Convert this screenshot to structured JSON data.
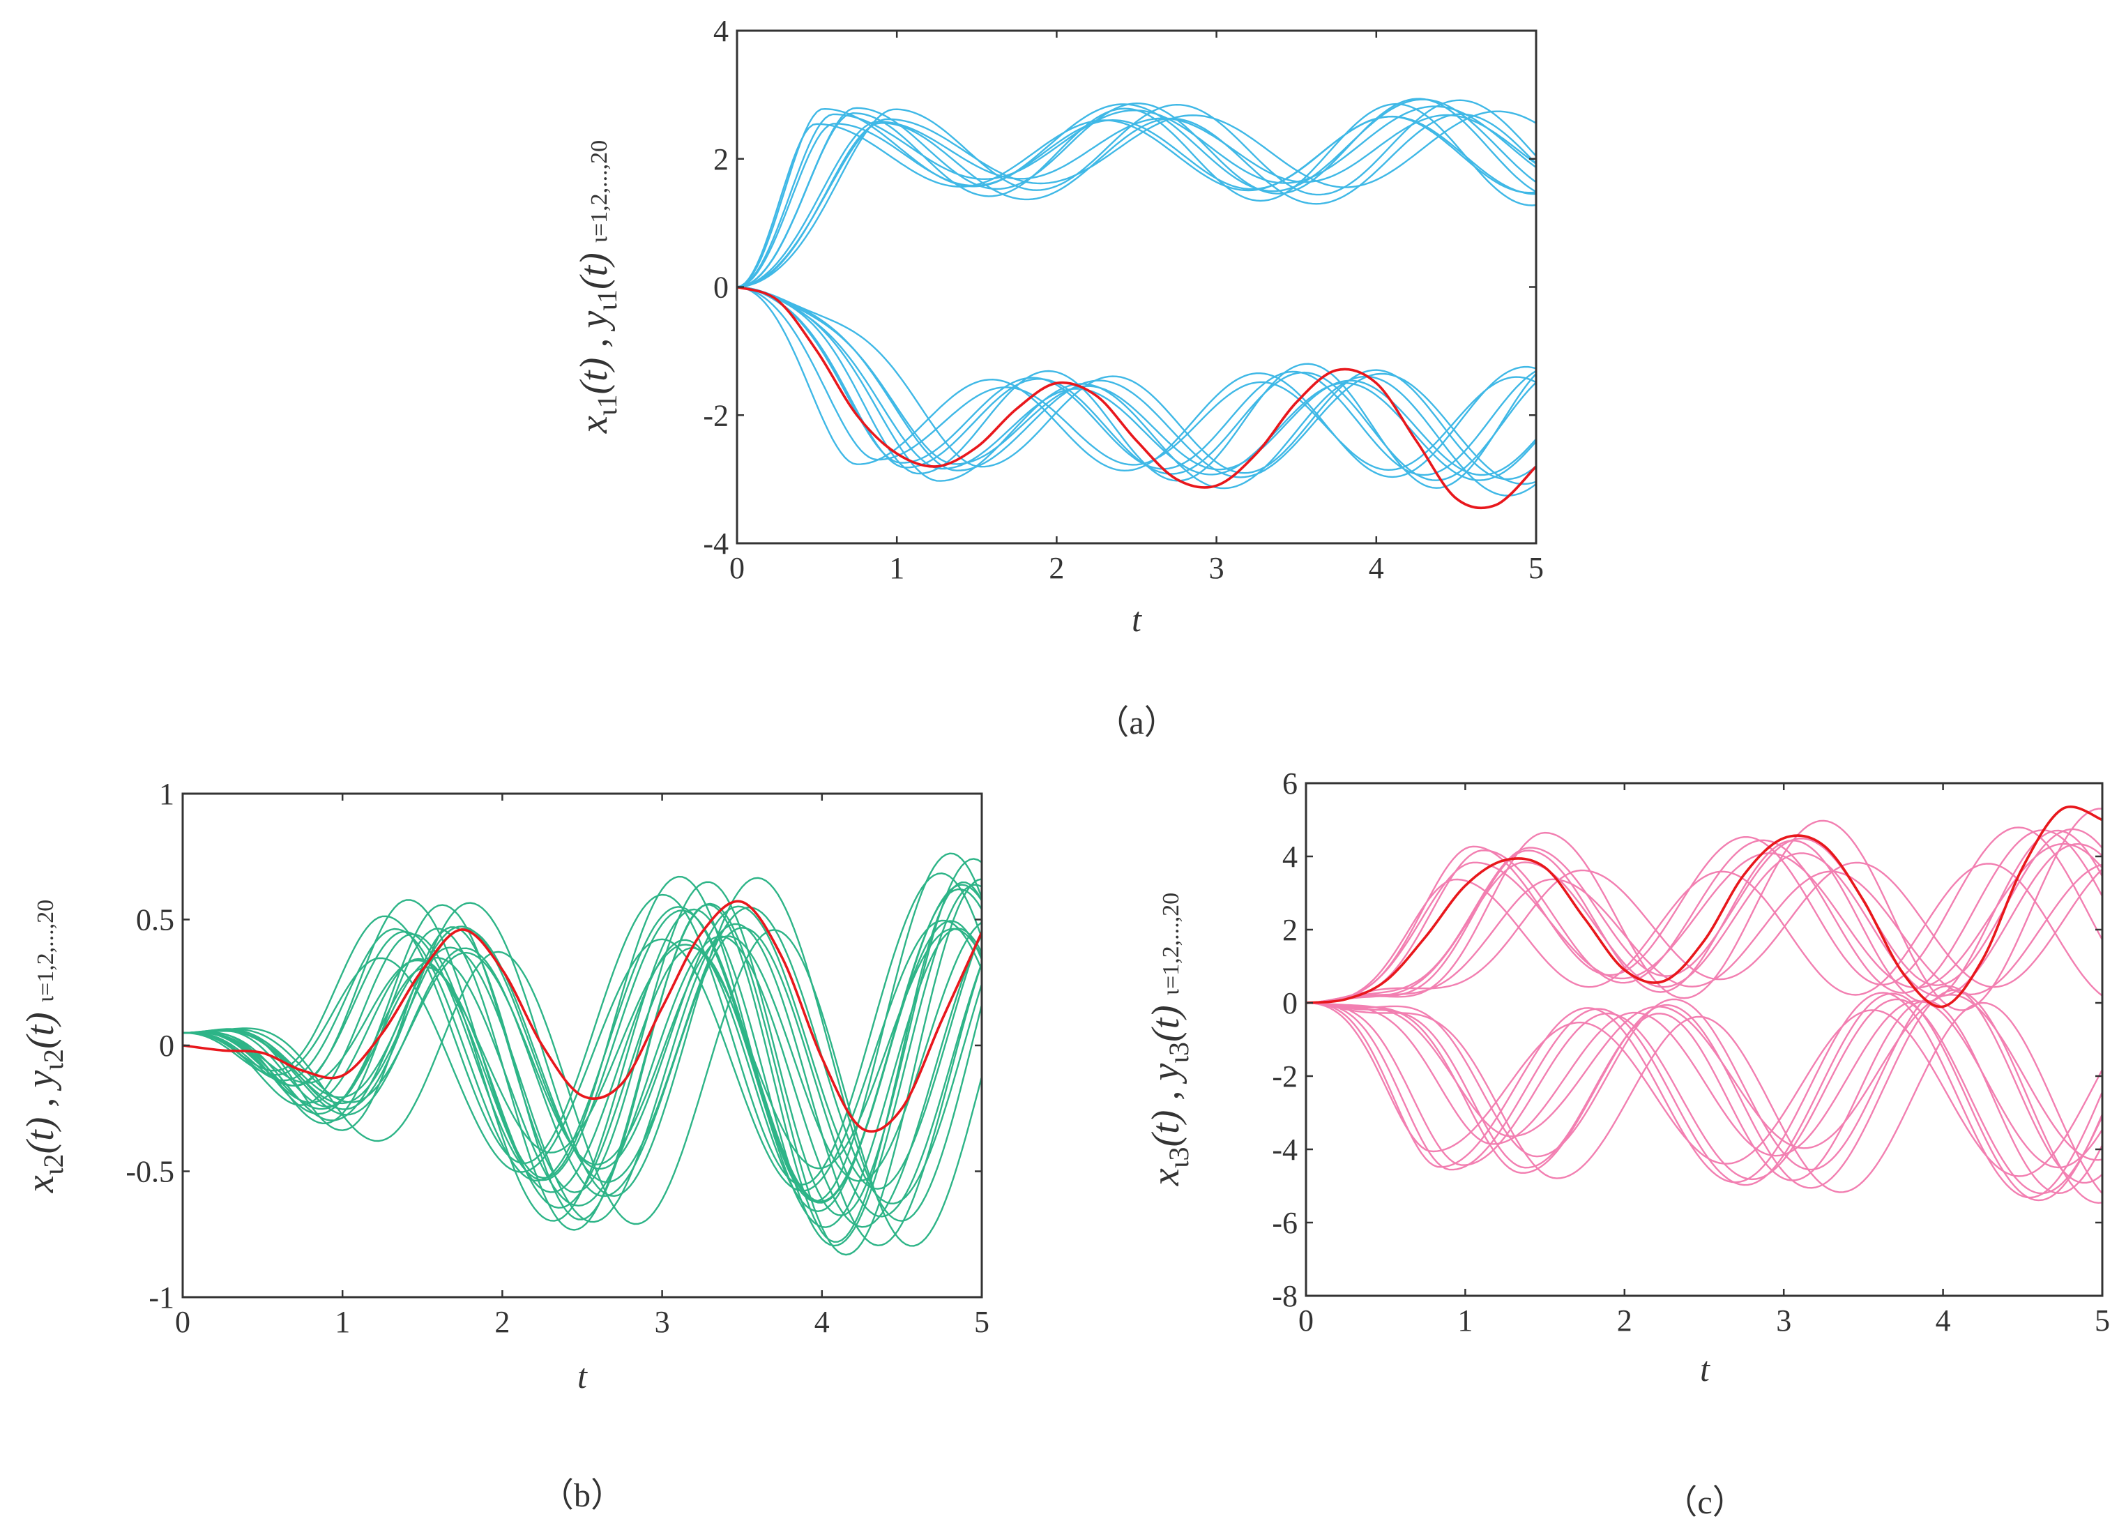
{
  "chart_data": [
    {
      "id": "a",
      "type": "line",
      "caption": "（a）",
      "xlabel": "t",
      "ylabel": {
        "x_sub": "ι1",
        "y_sub": "ι1",
        "index_range": "ι=1,2,...,20"
      },
      "xlim": [
        0,
        5
      ],
      "ylim": [
        -4,
        4
      ],
      "xticks": [
        0,
        1,
        2,
        3,
        4,
        5
      ],
      "yticks": [
        -4,
        -2,
        0,
        2,
        4
      ],
      "xtick_labels": [
        "0",
        "1",
        "2",
        "3",
        "4",
        "5"
      ],
      "ytick_labels": [
        "-4",
        "-2",
        "0",
        "2",
        "4"
      ],
      "bundle_color": "#3fb8e6",
      "leader_color": "#e8171c",
      "leader": {
        "name": "leader",
        "color": "#e8171c",
        "x": [
          0,
          0.25,
          0.5,
          0.75,
          1.0,
          1.25,
          1.5,
          1.75,
          2.0,
          2.25,
          2.5,
          2.75,
          3.0,
          3.25,
          3.5,
          3.75,
          4.0,
          4.25,
          4.5,
          4.75,
          5.0
        ],
        "y": [
          0,
          -0.2,
          -1.0,
          -2.0,
          -2.6,
          -2.8,
          -2.5,
          -1.9,
          -1.5,
          -1.7,
          -2.4,
          -3.0,
          -3.1,
          -2.6,
          -1.8,
          -1.3,
          -1.5,
          -2.4,
          -3.3,
          -3.4,
          -2.8
        ]
      },
      "followers": {
        "count": 20,
        "description": "tracking trajectories oscillating in two bands",
        "bands": [
          {
            "name": "upper band",
            "start": 0,
            "peak_level": 2.6,
            "valley_level": 1.6,
            "t_first_peak": 0.8,
            "period": 1.8,
            "amp_growth": 0.07
          },
          {
            "name": "lower band",
            "start": 0,
            "peak_level": -2.8,
            "valley_level": -1.6,
            "t_first_peak": 1.1,
            "period": 1.7,
            "amp_growth": 0.1
          }
        ]
      }
    },
    {
      "id": "b",
      "type": "line",
      "caption": "（b）",
      "xlabel": "t",
      "ylabel": {
        "x_sub": "ι2",
        "y_sub": "ι2",
        "index_range": "ι=1,2,...,20"
      },
      "xlim": [
        0,
        5
      ],
      "ylim": [
        -1,
        1
      ],
      "xticks": [
        0,
        1,
        2,
        3,
        4,
        5
      ],
      "yticks": [
        -1,
        -0.5,
        0,
        0.5,
        1
      ],
      "xtick_labels": [
        "0",
        "1",
        "2",
        "3",
        "4",
        "5"
      ],
      "ytick_labels": [
        "-1",
        "-0.5",
        "0",
        "0.5",
        "1"
      ],
      "bundle_color": "#2db487",
      "leader_color": "#e8171c",
      "leader": {
        "name": "leader",
        "color": "#e8171c",
        "x": [
          0,
          0.25,
          0.5,
          0.75,
          1.0,
          1.25,
          1.5,
          1.75,
          2.0,
          2.25,
          2.5,
          2.75,
          3.0,
          3.25,
          3.5,
          3.75,
          4.0,
          4.25,
          4.5,
          4.75,
          5.0
        ],
        "y": [
          0,
          -0.02,
          -0.03,
          -0.1,
          -0.12,
          0.05,
          0.3,
          0.46,
          0.3,
          0.0,
          -0.2,
          -0.15,
          0.15,
          0.45,
          0.57,
          0.35,
          -0.05,
          -0.33,
          -0.25,
          0.1,
          0.45
        ]
      },
      "followers": {
        "count": 20,
        "description": "tracking trajectories starting near 0 with growing oscillations",
        "bands": [
          {
            "name": "bundle",
            "start": 0.05,
            "peak_level": 0.35,
            "valley_level": -0.45,
            "t_first_peak": 1.6,
            "period": 1.7,
            "amp_growth": 0.12
          }
        ]
      }
    },
    {
      "id": "c",
      "type": "line",
      "caption": "（c）",
      "xlabel": "t",
      "ylabel": {
        "x_sub": "ι3",
        "y_sub": "ι3",
        "index_range": "ι=1,2,...,20"
      },
      "xlim": [
        0,
        5
      ],
      "ylim": [
        -8,
        6
      ],
      "xticks": [
        0,
        1,
        2,
        3,
        4,
        5
      ],
      "yticks": [
        -8,
        -6,
        -4,
        -2,
        0,
        2,
        4,
        6
      ],
      "xtick_labels": [
        "0",
        "1",
        "2",
        "3",
        "4",
        "5"
      ],
      "ytick_labels": [
        "-8",
        "-6",
        "-4",
        "-2",
        "0",
        "2",
        "4",
        "6"
      ],
      "bundle_color": "#f27fb1",
      "leader_color": "#e8171c",
      "leader": {
        "name": "leader",
        "color": "#e8171c",
        "x": [
          0,
          0.25,
          0.5,
          0.75,
          1.0,
          1.25,
          1.5,
          1.75,
          2.0,
          2.25,
          2.5,
          2.75,
          3.0,
          3.25,
          3.5,
          3.75,
          4.0,
          4.25,
          4.5,
          4.75,
          5.0
        ],
        "y": [
          0,
          0.1,
          0.6,
          1.8,
          3.2,
          3.9,
          3.7,
          2.3,
          0.9,
          0.6,
          1.7,
          3.5,
          4.5,
          4.3,
          2.8,
          0.8,
          -0.1,
          1.2,
          3.7,
          5.3,
          5.0
        ]
      },
      "followers": {
        "count": 20,
        "description": "tracking trajectories oscillating in two bands",
        "bands": [
          {
            "name": "upper band",
            "start": 0,
            "peak_level": 3.8,
            "valley_level": 0.7,
            "t_first_peak": 1.3,
            "period": 1.75,
            "amp_growth": 0.1
          },
          {
            "name": "lower band",
            "start": 0,
            "peak_level": -3.9,
            "valley_level": -0.7,
            "t_first_peak": 1.2,
            "period": 1.75,
            "amp_growth": 0.12
          }
        ]
      }
    }
  ]
}
